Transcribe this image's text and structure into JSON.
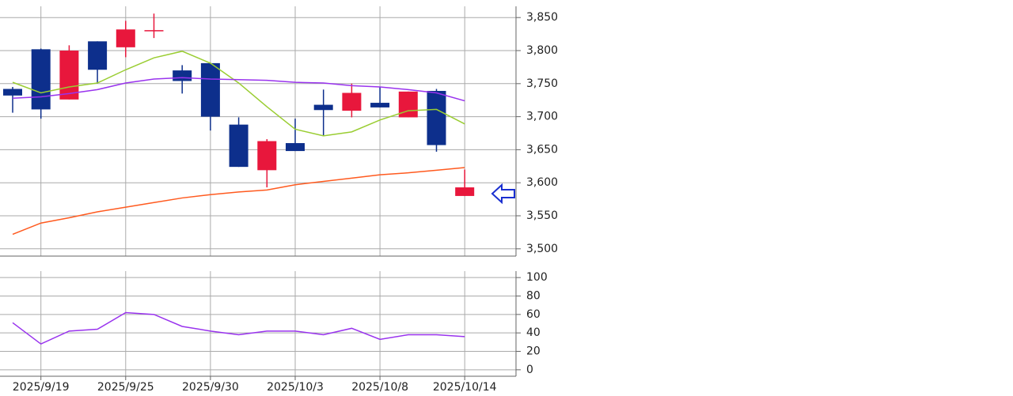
{
  "chart_data": [
    {
      "type": "candlestick",
      "categories": [
        null,
        "2025/9/19",
        null,
        null,
        "2025/9/25",
        null,
        null,
        "2025/9/30",
        null,
        null,
        "2025/10/3",
        null,
        null,
        "2025/10/8",
        null,
        null,
        "2025/10/14"
      ],
      "open": [
        3742,
        3802,
        3726,
        3814,
        3805,
        3830,
        3770,
        3781,
        3688,
        3619,
        3660,
        3718,
        3709,
        3721,
        3699,
        3739,
        3580
      ],
      "high": [
        3745,
        3803,
        3808,
        3814,
        3845,
        3856,
        3778,
        3781,
        3699,
        3666,
        3697,
        3741,
        3750,
        3745,
        3738,
        3742,
        3620
      ],
      "low": [
        3706,
        3697,
        3726,
        3750,
        3790,
        3819,
        3735,
        3679,
        3624,
        3593,
        3648,
        3671,
        3699,
        3714,
        3699,
        3647,
        3580
      ],
      "close": [
        3732,
        3711,
        3800,
        3771,
        3832,
        3830,
        3754,
        3700,
        3624,
        3663,
        3648,
        3710,
        3736,
        3714,
        3738,
        3657,
        3593
      ],
      "up_color": "#e8173c",
      "down_color": "#0d2f8c",
      "lines": [
        {
          "color": "#9acd32",
          "values": [
            3752,
            3736,
            3745,
            3751,
            3771,
            3789,
            3799,
            3781,
            3751,
            3715,
            3681,
            3671,
            3677,
            3695,
            3709,
            3711,
            3689
          ]
        },
        {
          "color": "#9933ee",
          "values": [
            3728,
            3730,
            3735,
            3741,
            3751,
            3757,
            3759,
            3757,
            3756,
            3755,
            3752,
            3751,
            3747,
            3745,
            3741,
            3736,
            3724
          ]
        },
        {
          "color": "#ff5a1f",
          "values": [
            3522,
            3539,
            3547,
            3556,
            3563,
            3570,
            3577,
            3582,
            3586,
            3589,
            3597,
            3602,
            3607,
            3612,
            3615,
            3619,
            3623
          ]
        }
      ],
      "ylim": [
        3489,
        3867
      ],
      "yticks": [
        {
          "value": 3500,
          "label": "3,500"
        },
        {
          "value": 3550,
          "label": "3,550"
        },
        {
          "value": 3600,
          "label": "3,600"
        },
        {
          "value": 3650,
          "label": "3,650"
        },
        {
          "value": 3700,
          "label": "3,700"
        },
        {
          "value": 3750,
          "label": "3,750"
        },
        {
          "value": 3800,
          "label": "3,800"
        },
        {
          "value": 3850,
          "label": "3,850"
        }
      ],
      "grid": true
    },
    {
      "type": "line",
      "series": [
        {
          "color": "#9933ee",
          "values": [
            51,
            28,
            42,
            44,
            62,
            60,
            47,
            42,
            38,
            42,
            42,
            38,
            45,
            33,
            38,
            38,
            36
          ]
        }
      ],
      "ylim": [
        -7,
        107
      ],
      "yticks": [
        0,
        20,
        40,
        60,
        80,
        100
      ],
      "grid": true
    }
  ]
}
